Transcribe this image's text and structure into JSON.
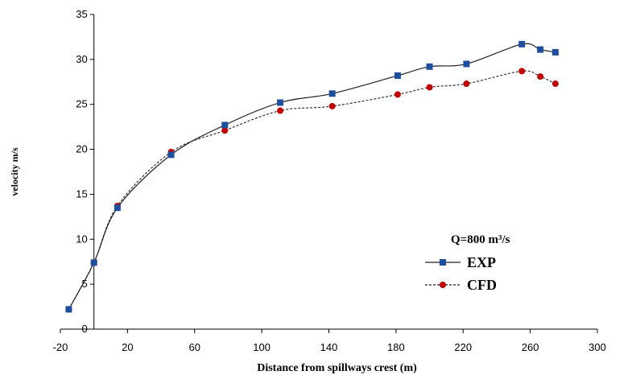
{
  "chart_data": {
    "type": "line",
    "xlabel": "Distance from spillways crest (m)",
    "ylabel": "velocity m/s",
    "xlim": [
      -20,
      300
    ],
    "ylim": [
      0,
      35
    ],
    "xticks": [
      -20,
      20,
      60,
      100,
      140,
      180,
      220,
      260,
      300
    ],
    "yticks": [
      0,
      5,
      10,
      15,
      20,
      25,
      30,
      35
    ],
    "grid": false,
    "legend_title": "Q=800 m³/s",
    "legend_position": "right",
    "series": [
      {
        "name": "EXP",
        "color": "#1f4e9e",
        "marker": "square",
        "line_style": "solid",
        "x": [
          -15,
          0,
          14,
          46,
          78,
          111,
          142,
          181,
          200,
          222,
          255,
          266,
          275
        ],
        "y": [
          2.2,
          7.4,
          13.5,
          19.4,
          22.7,
          25.2,
          26.2,
          28.2,
          29.2,
          29.5,
          31.7,
          31.1,
          30.8
        ]
      },
      {
        "name": "CFD",
        "color": "#c00000",
        "marker": "circle",
        "line_style": "dashed",
        "x": [
          -15,
          0,
          14,
          46,
          78,
          111,
          142,
          181,
          200,
          222,
          255,
          266,
          275
        ],
        "y": [
          2.2,
          7.4,
          13.7,
          19.7,
          22.1,
          24.3,
          24.8,
          26.1,
          26.9,
          27.3,
          28.7,
          28.1,
          27.3
        ]
      }
    ]
  }
}
